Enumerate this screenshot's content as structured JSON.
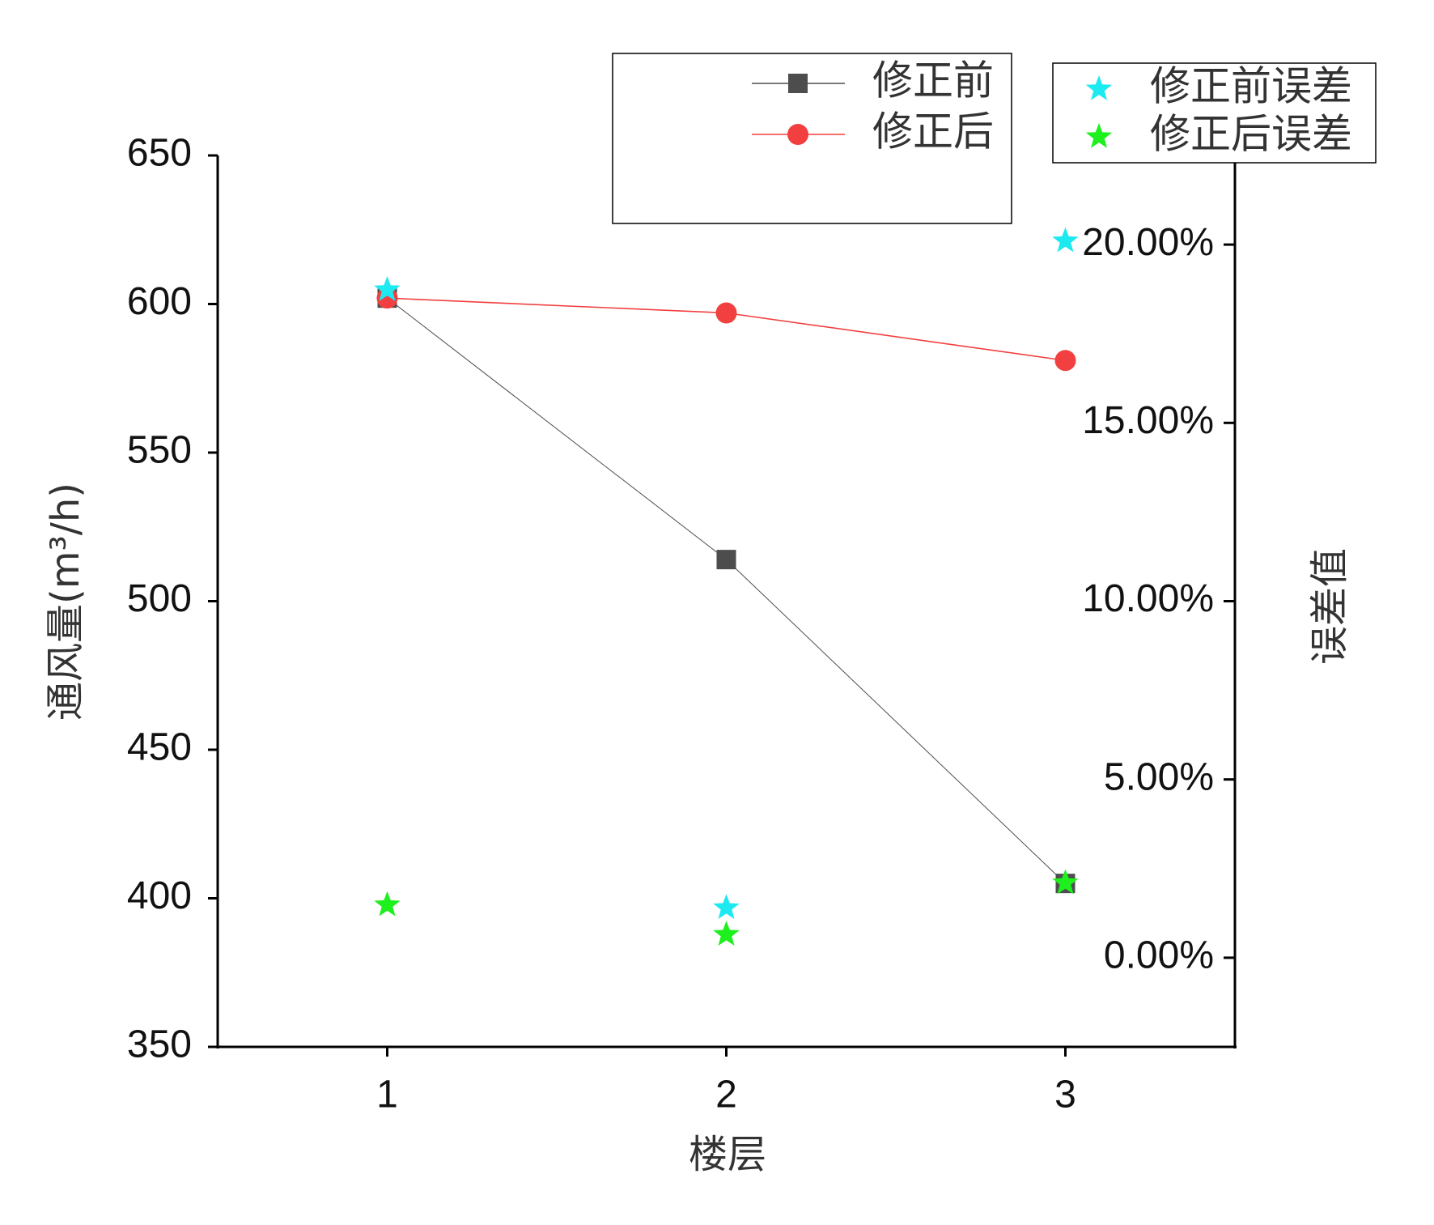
{
  "chart_data": {
    "type": "line",
    "x": [
      1,
      2,
      3
    ],
    "xlabel": "楼层",
    "ylabel": "通风量(m³/h)",
    "y2label": "误差值",
    "xlim": [
      0.5,
      3.5
    ],
    "xticks": [
      1,
      2,
      3
    ],
    "ylim": [
      350,
      650
    ],
    "yticks": [
      350,
      400,
      450,
      500,
      550,
      600,
      650
    ],
    "y2lim": [
      -2.5,
      22.5
    ],
    "y2ticks": [
      {
        "value": 0,
        "label": "0.00%"
      },
      {
        "value": 5,
        "label": "5.00%"
      },
      {
        "value": 10,
        "label": "10.00%"
      },
      {
        "value": 15,
        "label": "15.00%"
      },
      {
        "value": 20,
        "label": "20.00%"
      }
    ],
    "series": [
      {
        "name": "修正前",
        "color": "#4d4d4d",
        "marker": "square",
        "line": true,
        "values": [
          602,
          514,
          405
        ]
      },
      {
        "name": "修正后",
        "color": "#f23f3f",
        "marker": "circle",
        "line": true,
        "values": [
          602,
          597,
          581
        ]
      },
      {
        "name": "修正前误差",
        "color": "#1de9f0",
        "marker": "star",
        "line": false,
        "axis": "y2",
        "values": [
          18.73,
          1.4,
          20.1
        ]
      },
      {
        "name": "修正后误差",
        "color": "#1ef01e",
        "marker": "star",
        "line": false,
        "axis": "y2",
        "values": [
          1.48,
          0.65,
          2.1
        ]
      }
    ]
  }
}
